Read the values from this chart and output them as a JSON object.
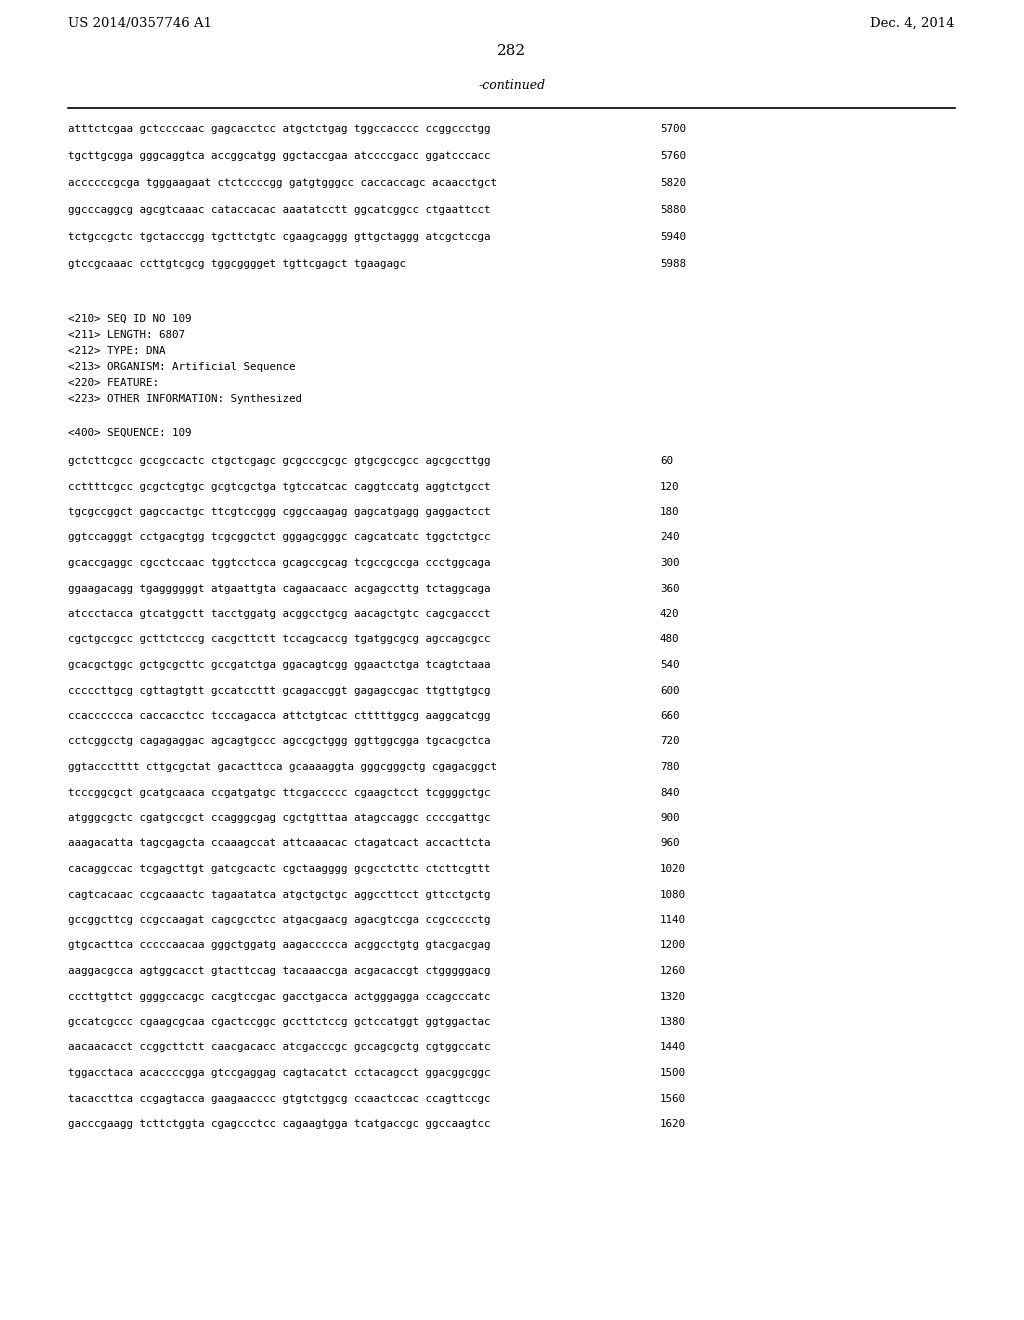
{
  "header_left": "US 2014/0357746 A1",
  "header_right": "Dec. 4, 2014",
  "page_number": "282",
  "continued_label": "-continued",
  "background_color": "#ffffff",
  "text_color": "#000000",
  "sequence_lines_top": [
    [
      "atttctcgaa gctccccaac gagcacctcc atgctctgag tggccacccc ccggccctgg",
      "5700"
    ],
    [
      "tgcttgcgga gggcaggtca accggcatgg ggctaccgaa atccccgacc ggatcccacc",
      "5760"
    ],
    [
      "accccccgcga tgggaagaat ctctccccgg gatgtgggcc caccaccagc acaacctgct",
      "5820"
    ],
    [
      "ggcccaggcg agcgtcaaac cataccacac aaatatcctt ggcatcggcc ctgaattcct",
      "5880"
    ],
    [
      "tctgccgctc tgctacccgg tgcttctgtc cgaagcaggg gttgctaggg atcgctccga",
      "5940"
    ],
    [
      "gtccgcaaac ccttgtcgcg tggcgggget tgttcgagct tgaagagc",
      "5988"
    ]
  ],
  "metadata_lines": [
    "<210> SEQ ID NO 109",
    "<211> LENGTH: 6807",
    "<212> TYPE: DNA",
    "<213> ORGANISM: Artificial Sequence",
    "<220> FEATURE:",
    "<223> OTHER INFORMATION: Synthesized"
  ],
  "sequence_label": "<400> SEQUENCE: 109",
  "sequence_lines_bottom": [
    [
      "gctcttcgcc gccgccactc ctgctcgagc gcgcccgcgc gtgcgccgcc agcgccttgg",
      "60"
    ],
    [
      "ccttttcgcc gcgctcgtgc gcgtcgctga tgtccatcac caggtccatg aggtctgcct",
      "120"
    ],
    [
      "tgcgccggct gagccactgc ttcgtccggg cggccaagag gagcatgagg gaggactcct",
      "180"
    ],
    [
      "ggtccagggt cctgacgtgg tcgcggctct gggagcgggc cagcatcatc tggctctgcc",
      "240"
    ],
    [
      "gcaccgaggc cgcctccaac tggtcctcca gcagccgcag tcgccgccga ccctggcaga",
      "300"
    ],
    [
      "ggaagacagg tgaggggggt atgaattgta cagaacaacc acgagccttg tctaggcaga",
      "360"
    ],
    [
      "atccctacca gtcatggctt tacctggatg acggcctgcg aacagctgtc cagcgaccct",
      "420"
    ],
    [
      "cgctgccgcc gcttctcccg cacgcttctt tccagcaccg tgatggcgcg agccagcgcc",
      "480"
    ],
    [
      "gcacgctggc gctgcgcttc gccgatctga ggacagtcgg ggaactctga tcagtctaaa",
      "540"
    ],
    [
      "cccccttgcg cgttagtgtt gccatccttt gcagaccggt gagagccgac ttgttgtgcg",
      "600"
    ],
    [
      "ccacccccca caccacctcc tcccagacca attctgtcac ctttttggcg aaggcatcgg",
      "660"
    ],
    [
      "cctcggcctg cagagaggac agcagtgccc agccgctggg ggttggcgga tgcacgctca",
      "720"
    ],
    [
      "ggtaccctttt cttgcgctat gacacttcca gcaaaaggta gggcgggctg cgagacggct",
      "780"
    ],
    [
      "tcccggcgct gcatgcaaca ccgatgatgc ttcgaccccc cgaagctcct tcggggctgc",
      "840"
    ],
    [
      "atgggcgctc cgatgccgct ccagggcgag cgctgtttaa atagccaggc ccccgattgc",
      "900"
    ],
    [
      "aaagacatta tagcgagcta ccaaagccat attcaaacac ctagatcact accacttcta",
      "960"
    ],
    [
      "cacaggccac tcgagcttgt gatcgcactc cgctaagggg gcgcctcttc ctcttcgttt",
      "1020"
    ],
    [
      "cagtcacaac ccgcaaactc tagaatatca atgctgctgc aggccttcct gttcctgctg",
      "1080"
    ],
    [
      "gccggcttcg ccgccaagat cagcgcctcc atgacgaacg agacgtccga ccgccccctg",
      "1140"
    ],
    [
      "gtgcacttca cccccaacaa gggctggatg aagaccccca acggcctgtg gtacgacgag",
      "1200"
    ],
    [
      "aaggacgcca agtggcacct gtacttccag tacaaaccga acgacaccgt ctgggggacg",
      "1260"
    ],
    [
      "cccttgttct ggggccacgc cacgtccgac gacctgacca actgggagga ccagcccatc",
      "1320"
    ],
    [
      "gccatcgccc cgaagcgcaa cgactccggc gccttctccg gctccatggt ggtggactac",
      "1380"
    ],
    [
      "aacaacacct ccggcttctt caacgacacc atcgacccgc gccagcgctg cgtggccatc",
      "1440"
    ],
    [
      "tggacctaca acaccccgga gtccgaggag cagtacatct cctacagcct ggacggcggc",
      "1500"
    ],
    [
      "tacaccttca ccgagtacca gaagaacccc gtgtctggcg ccaactccac ccagttccgc",
      "1560"
    ],
    [
      "gacccgaagg tcttctggta cgagccctcc cagaagtgga tcatgaccgc ggccaagtcc",
      "1620"
    ]
  ]
}
